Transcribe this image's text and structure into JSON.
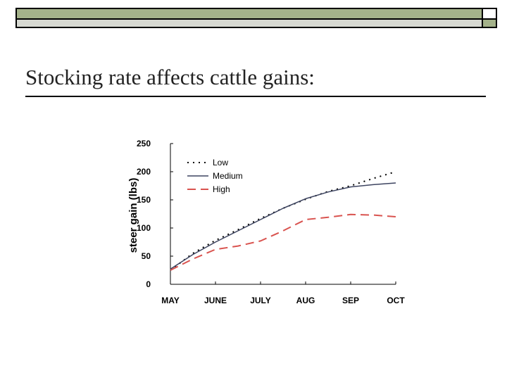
{
  "slide": {
    "title": "Stocking rate affects cattle gains:"
  },
  "colors": {
    "topbar_accent": "#a4b28a",
    "topbar_light": "#d7d9d2",
    "low": "#000000",
    "medium": "#3d4460",
    "high": "#d9534f"
  },
  "chart_data": {
    "type": "line",
    "title": "",
    "xlabel": "",
    "ylabel": "steer gain (lbs)",
    "categories": [
      "MAY",
      "JUNE",
      "JULY",
      "AUG",
      "SEP",
      "OCT"
    ],
    "yticks": [
      "0",
      "50",
      "100",
      "150",
      "200",
      "250"
    ],
    "ylim": [
      0,
      250
    ],
    "xlim": [
      0,
      5
    ],
    "grid": false,
    "legend": "top-left",
    "series": [
      {
        "name": "Low",
        "style": "dotted",
        "color": "#000000",
        "x": [
          0,
          0.5,
          1,
          1.5,
          2,
          2.5,
          3,
          3.5,
          4,
          4.5,
          5
        ],
        "y": [
          25,
          55,
          78,
          97,
          117,
          135,
          151,
          165,
          175,
          188,
          200
        ]
      },
      {
        "name": "Medium",
        "style": "solid",
        "color": "#3d4460",
        "x": [
          0,
          0.5,
          1,
          1.5,
          2,
          2.5,
          3,
          3.5,
          4,
          4.5,
          5
        ],
        "y": [
          27,
          53,
          75,
          95,
          115,
          135,
          152,
          164,
          173,
          177,
          180
        ]
      },
      {
        "name": "High",
        "style": "dashed",
        "color": "#d9534f",
        "x": [
          0,
          0.5,
          1,
          1.5,
          2,
          2.5,
          3,
          3.5,
          4,
          4.5,
          5
        ],
        "y": [
          25,
          45,
          62,
          68,
          77,
          95,
          115,
          119,
          124,
          123,
          120
        ]
      }
    ]
  }
}
